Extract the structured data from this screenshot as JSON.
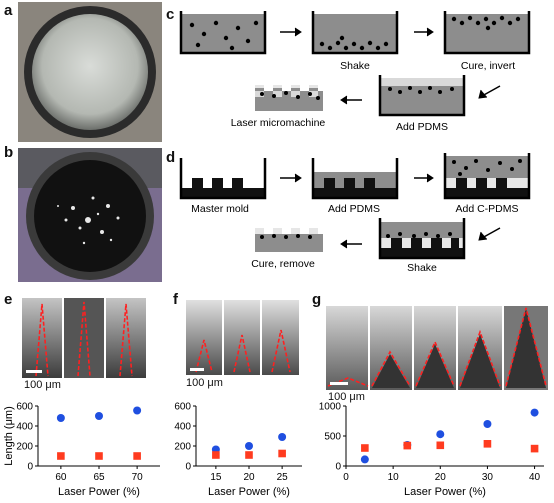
{
  "panels": {
    "a": "a",
    "b": "b",
    "c": "c",
    "d": "d",
    "e": "e",
    "f": "f",
    "g": "g"
  },
  "c": {
    "shake": "Shake",
    "cure": "Cure, invert",
    "add": "Add PDMS",
    "laser": "Laser micromachine"
  },
  "d": {
    "master": "Master mold",
    "add_pdms": "Add PDMS",
    "add_cpdms": "Add C-PDMS",
    "shake": "Shake",
    "cure": "Cure, remove"
  },
  "scalebars": {
    "e": "100 μm",
    "f": "100 μm",
    "g": "100 μm"
  },
  "colors": {
    "blue": "#1f4fe0",
    "red": "#ff3b1f",
    "mold": "#9a9a9a",
    "cpdms": "#e8e8e8"
  },
  "chart_data": [
    {
      "type": "scatter",
      "panel": "e",
      "xlabel": "Laser Power (%)",
      "ylabel": "Length (μm)",
      "x_ticks": [
        60,
        65,
        70
      ],
      "y_ticks": [
        0,
        200,
        400,
        600
      ],
      "ylim": [
        0,
        600
      ],
      "xlim": [
        57,
        73
      ],
      "series": [
        {
          "values": [
            {
              "x": 60,
              "y": 480
            },
            {
              "x": 65,
              "y": 500
            },
            {
              "x": 70,
              "y": 555
            }
          ],
          "color": "#1f4fe0",
          "marker": "circle"
        },
        {
          "values": [
            {
              "x": 60,
              "y": 100
            },
            {
              "x": 65,
              "y": 100
            },
            {
              "x": 70,
              "y": 100
            }
          ],
          "color": "#ff3b1f",
          "marker": "square"
        }
      ]
    },
    {
      "type": "scatter",
      "panel": "f",
      "xlabel": "Laser Power (%)",
      "ylabel": "",
      "x_ticks": [
        15,
        20,
        25
      ],
      "y_ticks": [
        0,
        200,
        400,
        600
      ],
      "ylim": [
        0,
        600
      ],
      "xlim": [
        12,
        28
      ],
      "series": [
        {
          "values": [
            {
              "x": 15,
              "y": 165
            },
            {
              "x": 20,
              "y": 200
            },
            {
              "x": 25,
              "y": 290
            }
          ],
          "color": "#1f4fe0",
          "marker": "circle"
        },
        {
          "values": [
            {
              "x": 15,
              "y": 110
            },
            {
              "x": 20,
              "y": 110
            },
            {
              "x": 25,
              "y": 125
            }
          ],
          "color": "#ff3b1f",
          "marker": "square"
        }
      ]
    },
    {
      "type": "scatter",
      "panel": "g",
      "xlabel": "Laser Power (%)",
      "ylabel": "",
      "x_ticks": [
        0,
        10,
        20,
        30,
        40
      ],
      "y_ticks": [
        0,
        500,
        1000
      ],
      "ylim": [
        0,
        1000
      ],
      "xlim": [
        0,
        42
      ],
      "series": [
        {
          "values": [
            {
              "x": 4,
              "y": 110
            },
            {
              "x": 13,
              "y": 350
            },
            {
              "x": 20,
              "y": 530
            },
            {
              "x": 30,
              "y": 700
            },
            {
              "x": 40,
              "y": 890
            }
          ],
          "color": "#1f4fe0",
          "marker": "circle"
        },
        {
          "values": [
            {
              "x": 4,
              "y": 300
            },
            {
              "x": 13,
              "y": 340
            },
            {
              "x": 20,
              "y": 345
            },
            {
              "x": 30,
              "y": 370
            },
            {
              "x": 40,
              "y": 290
            }
          ],
          "color": "#ff3b1f",
          "marker": "square"
        }
      ]
    }
  ]
}
